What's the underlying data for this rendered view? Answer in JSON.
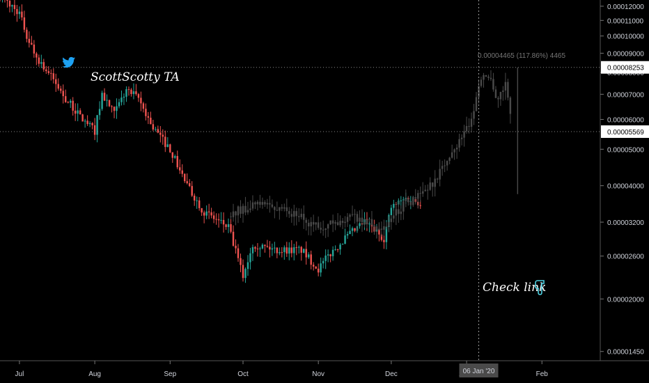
{
  "chart_data": {
    "type": "candlestick",
    "y_scale": "log",
    "ylim": [
      1.35e-05,
      1.28e-05
    ],
    "y_ticks": [
      "0.00012000",
      "0.00011000",
      "0.00010000",
      "0.00009000",
      "0.00008000",
      "0.00007000",
      "0.00006000",
      "0.00005000",
      "0.00004000",
      "0.00003200",
      "0.00002600",
      "0.00002000",
      "0.00001450"
    ],
    "y_tick_values": [
      0.00012,
      0.00011,
      0.0001,
      9e-05,
      8e-05,
      7e-05,
      6e-05,
      5e-05,
      4e-05,
      3.2e-05,
      2.6e-05,
      2e-05,
      1.45e-05
    ],
    "x_ticks": [
      "Jul",
      "Aug",
      "Sep",
      "Oct",
      "Nov",
      "Dec",
      "2020",
      "Feb"
    ],
    "x_tick_dates": [
      "2019-07-01",
      "2019-08-01",
      "2019-09-01",
      "2019-10-01",
      "2019-11-01",
      "2019-12-01",
      "2020-01-01",
      "2020-02-01"
    ],
    "x_range": [
      "2019-06-23",
      "2020-02-25"
    ],
    "crosshair_date_label": "06 Jan '20",
    "crosshair_date": "2020-01-06",
    "horizontal_lines": [
      {
        "label": "0.00008253",
        "value": 8.253e-05
      },
      {
        "label": "0.00005569",
        "value": 5.569e-05
      }
    ],
    "measure_label": "0.00004465 (117.86%) 4465",
    "colors": {
      "up": "#26a69a",
      "down": "#ef5350",
      "projection": "#4a4a4a",
      "background": "#000000"
    },
    "keypoints": [
      {
        "date": "2019-06-23",
        "price": 0.000128
      },
      {
        "date": "2019-07-01",
        "price": 0.000115
      },
      {
        "date": "2019-07-04",
        "price": 0.0001
      },
      {
        "date": "2019-07-08",
        "price": 8.8e-05
      },
      {
        "date": "2019-07-14",
        "price": 7.8e-05
      },
      {
        "date": "2019-07-20",
        "price": 6.8e-05
      },
      {
        "date": "2019-07-27",
        "price": 6e-05
      },
      {
        "date": "2019-08-01",
        "price": 5.6e-05
      },
      {
        "date": "2019-08-04",
        "price": 7e-05
      },
      {
        "date": "2019-08-09",
        "price": 6.2e-05
      },
      {
        "date": "2019-08-14",
        "price": 7.2e-05
      },
      {
        "date": "2019-08-19",
        "price": 6.8e-05
      },
      {
        "date": "2019-08-25",
        "price": 5.7e-05
      },
      {
        "date": "2019-09-01",
        "price": 5e-05
      },
      {
        "date": "2019-09-08",
        "price": 4e-05
      },
      {
        "date": "2019-09-15",
        "price": 3.4e-05
      },
      {
        "date": "2019-09-25",
        "price": 3.1e-05
      },
      {
        "date": "2019-10-01",
        "price": 2.3e-05
      },
      {
        "date": "2019-10-05",
        "price": 2.8e-05
      },
      {
        "date": "2019-10-15",
        "price": 2.7e-05
      },
      {
        "date": "2019-10-25",
        "price": 2.7e-05
      },
      {
        "date": "2019-11-01",
        "price": 2.4e-05
      },
      {
        "date": "2019-11-05",
        "price": 2.6e-05
      },
      {
        "date": "2019-11-12",
        "price": 2.9e-05
      },
      {
        "date": "2019-11-20",
        "price": 3.2e-05
      },
      {
        "date": "2019-11-28",
        "price": 2.9e-05
      },
      {
        "date": "2019-12-01",
        "price": 3.5e-05
      },
      {
        "date": "2019-12-07",
        "price": 3.7e-05
      },
      {
        "date": "2019-12-14",
        "price": 3.6e-05
      }
    ],
    "projection_keypoints": [
      {
        "date": "2019-09-26",
        "price": 3.4e-05
      },
      {
        "date": "2019-10-10",
        "price": 3.6e-05
      },
      {
        "date": "2019-10-20",
        "price": 3.4e-05
      },
      {
        "date": "2019-11-01",
        "price": 3.1e-05
      },
      {
        "date": "2019-11-15",
        "price": 3.3e-05
      },
      {
        "date": "2019-11-28",
        "price": 3.1e-05
      },
      {
        "date": "2019-12-07",
        "price": 3.6e-05
      },
      {
        "date": "2019-12-14",
        "price": 3.8e-05
      },
      {
        "date": "2019-12-22",
        "price": 4.4e-05
      },
      {
        "date": "2019-12-28",
        "price": 5.2e-05
      },
      {
        "date": "2020-01-03",
        "price": 6e-05
      },
      {
        "date": "2020-01-06",
        "price": 7.2e-05
      },
      {
        "date": "2020-01-08",
        "price": 8e-05
      },
      {
        "date": "2020-01-11",
        "price": 7.5e-05
      },
      {
        "date": "2020-01-14",
        "price": 6.8e-05
      },
      {
        "date": "2020-01-17",
        "price": 7.4e-05
      },
      {
        "date": "2020-01-20",
        "price": 5.8e-05
      }
    ],
    "annotations": [
      {
        "text": "ScottScotty TA",
        "icon": "twitter-bird-icon"
      },
      {
        "text": "Check link",
        "icon": "hand-pointing-down-icon"
      }
    ]
  }
}
